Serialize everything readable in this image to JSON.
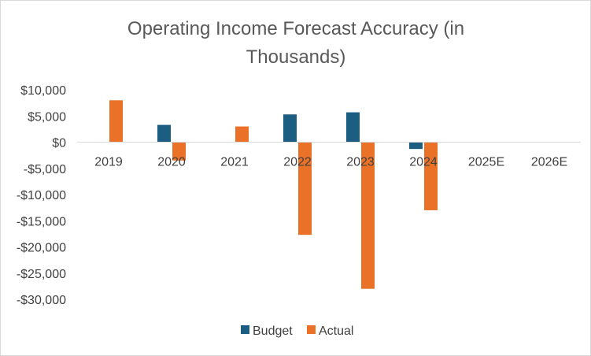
{
  "chart_data": {
    "type": "bar",
    "title": "Operating Income Forecast Accuracy (in Thousands)",
    "title_lines": [
      "Operating Income Forecast Accuracy (in",
      "Thousands)"
    ],
    "xlabel": "",
    "ylabel": "",
    "categories": [
      "2019",
      "2020",
      "2021",
      "2022",
      "2023",
      "2024",
      "2025E",
      "2026E"
    ],
    "series": [
      {
        "name": "Budget",
        "color": "#1b5e82",
        "values": [
          0,
          3300,
          0,
          5300,
          5700,
          -1300,
          0,
          0
        ]
      },
      {
        "name": "Actual",
        "color": "#ea7228",
        "values": [
          8000,
          -3500,
          3000,
          -17700,
          -28000,
          -13000,
          0,
          0
        ]
      }
    ],
    "ylim": [
      -30000,
      10000
    ],
    "yticks": [
      10000,
      5000,
      0,
      -5000,
      -10000,
      -15000,
      -20000,
      -25000,
      -30000
    ],
    "ytick_labels": [
      "$10,000",
      "$5,000",
      "$0",
      "-$5,000",
      "-$10,000",
      "-$15,000",
      "-$20,000",
      "-$25,000",
      "-$30,000"
    ],
    "grid": false,
    "legend_position": "bottom"
  }
}
